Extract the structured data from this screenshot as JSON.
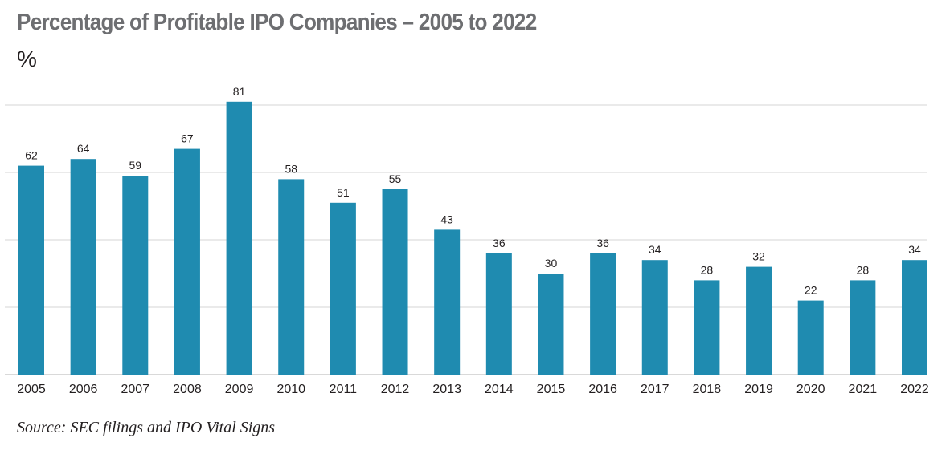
{
  "chart_data": {
    "type": "bar",
    "title": "Percentage of Profitable IPO Companies – 2005 to 2022",
    "unit_label": "%",
    "source": "Source: SEC filings and IPO Vital Signs",
    "categories": [
      "2005",
      "2006",
      "2007",
      "2008",
      "2009",
      "2010",
      "2011",
      "2012",
      "2013",
      "2014",
      "2015",
      "2016",
      "2017",
      "2018",
      "2019",
      "2020",
      "2021",
      "2022"
    ],
    "values": [
      62,
      64,
      59,
      67,
      81,
      58,
      51,
      55,
      43,
      36,
      30,
      36,
      34,
      28,
      32,
      22,
      28,
      34
    ],
    "ylim": [
      0,
      80
    ],
    "gridlines": [
      20,
      40,
      60,
      80
    ],
    "grid": true,
    "bar_color": "#1f8bb0",
    "title_color": "#6d6e71"
  }
}
